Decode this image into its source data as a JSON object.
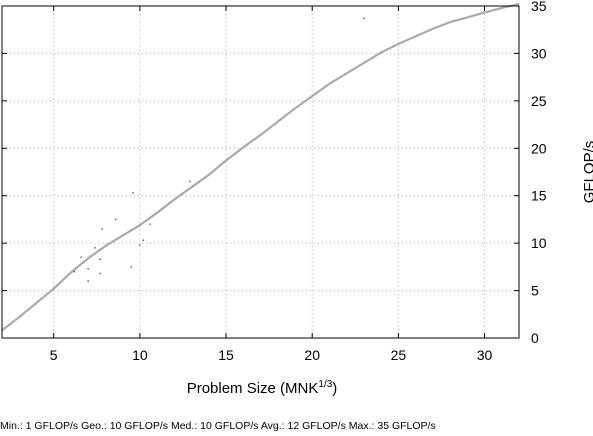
{
  "chart_data": {
    "type": "line",
    "title": "",
    "xlabel": "Problem Size (MNK",
    "xlabel_sup": "1/3",
    "xlabel_suffix": ")",
    "ylabel": "GFLOP/s",
    "xlim": [
      2,
      32
    ],
    "ylim": [
      0,
      35
    ],
    "xticks": [
      5,
      10,
      15,
      20,
      25,
      30
    ],
    "yticks": [
      0,
      5,
      10,
      15,
      20,
      25,
      30,
      35
    ],
    "y_axis_side": "right",
    "grid": true,
    "legend": "none",
    "series": [
      {
        "style": "line",
        "color": "#aaaaaa",
        "x": [
          2,
          3,
          4,
          5,
          6,
          7,
          8,
          9,
          10,
          11,
          12,
          13,
          14,
          15,
          16,
          17,
          18,
          19,
          20,
          21,
          22,
          23,
          24,
          25,
          26,
          27,
          28,
          29,
          30,
          31,
          32
        ],
        "y": [
          0.8,
          2.2,
          3.7,
          5.2,
          6.9,
          8.4,
          9.7,
          10.8,
          11.9,
          13.2,
          14.6,
          15.9,
          17.2,
          18.7,
          20.1,
          21.4,
          22.8,
          24.2,
          25.5,
          26.8,
          27.9,
          29.0,
          30.1,
          31.0,
          31.8,
          32.6,
          33.3,
          33.8,
          34.3,
          34.8,
          35.2
        ]
      },
      {
        "style": "points",
        "color": "#556677",
        "x": [
          6.2,
          6.6,
          7.0,
          7.0,
          7.4,
          7.7,
          7.7,
          7.8,
          8.6,
          9.5,
          9.6,
          10.0,
          10.2,
          10.6,
          12.9,
          23.0
        ],
        "y": [
          7.0,
          8.5,
          6.0,
          7.3,
          9.5,
          8.3,
          6.8,
          11.5,
          12.5,
          7.5,
          15.3,
          9.8,
          10.3,
          12.0,
          16.5,
          33.7
        ]
      }
    ]
  },
  "stats": {
    "text": "Min.: 1 GFLOP/s   Geo.: 10 GFLOP/s   Med.: 10 GFLOP/s   Avg.: 12 GFLOP/s   Max.: 35 GFLOP/s"
  }
}
